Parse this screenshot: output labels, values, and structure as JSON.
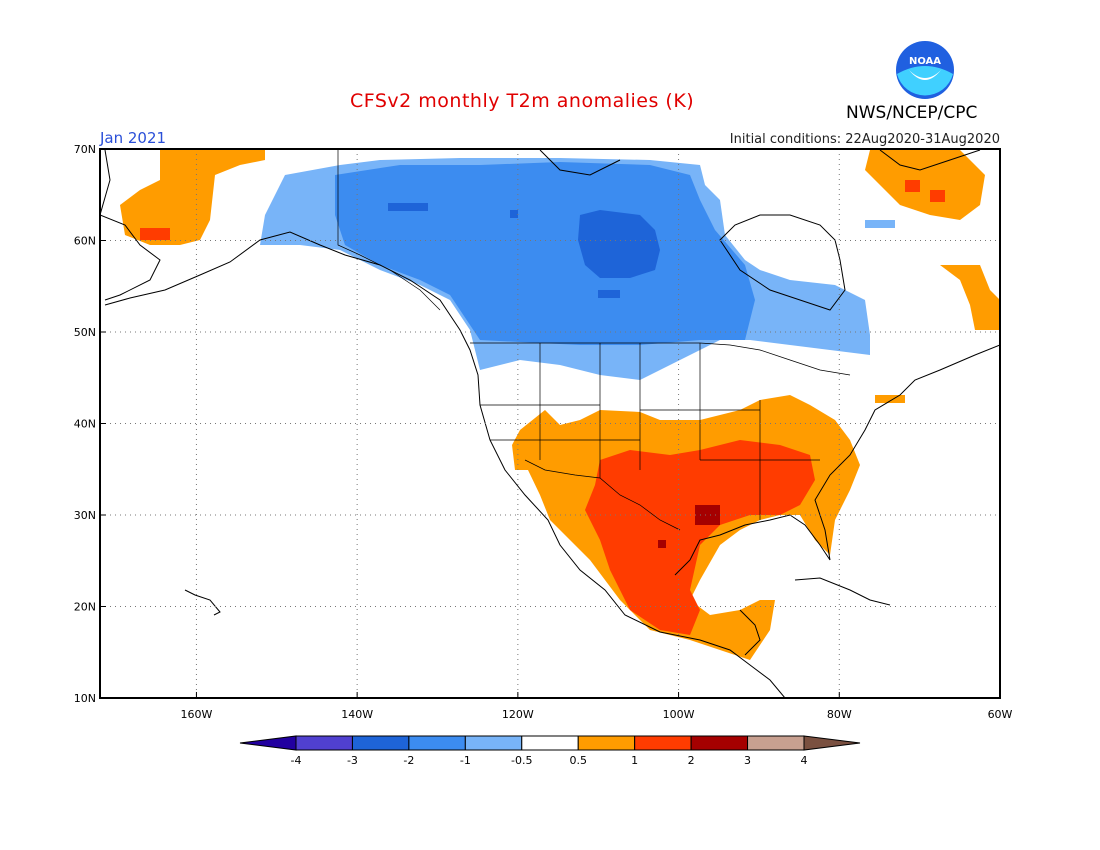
{
  "title": "CFSv2 monthly T2m anomalies (K)",
  "month": "Jan 2021",
  "initial_conditions": "Initial conditions: 22Aug2020-31Aug2020",
  "agency": "NWS/NCEP/CPC",
  "logo_text": "NOAA",
  "map": {
    "lon_range": [
      -172,
      -60
    ],
    "lat_range": [
      10,
      70
    ],
    "lon_ticks": [
      {
        "value": -160,
        "label": "160W"
      },
      {
        "value": -140,
        "label": "140W"
      },
      {
        "value": -120,
        "label": "120W"
      },
      {
        "value": -100,
        "label": "100W"
      },
      {
        "value": -80,
        "label": "80W"
      },
      {
        "value": -60,
        "label": "60W"
      }
    ],
    "lat_ticks": [
      {
        "value": 10,
        "label": "10N"
      },
      {
        "value": 20,
        "label": "20N"
      },
      {
        "value": 30,
        "label": "30N"
      },
      {
        "value": 40,
        "label": "40N"
      },
      {
        "value": 50,
        "label": "50N"
      },
      {
        "value": 60,
        "label": "60N"
      },
      {
        "value": 70,
        "label": "70N"
      }
    ],
    "grid": "dotted"
  },
  "colorbar": {
    "labels": [
      "-4",
      "-3",
      "-2",
      "-1",
      "-0.5",
      "0.5",
      "1",
      "2",
      "3",
      "4"
    ],
    "colors": [
      "#2200a0",
      "#5040d0",
      "#1e64d8",
      "#3c8cf0",
      "#78b4f8",
      "#ffffff",
      "#ff9c00",
      "#ff3c00",
      "#a50000",
      "#c8a090",
      "#7a5040"
    ]
  }
}
